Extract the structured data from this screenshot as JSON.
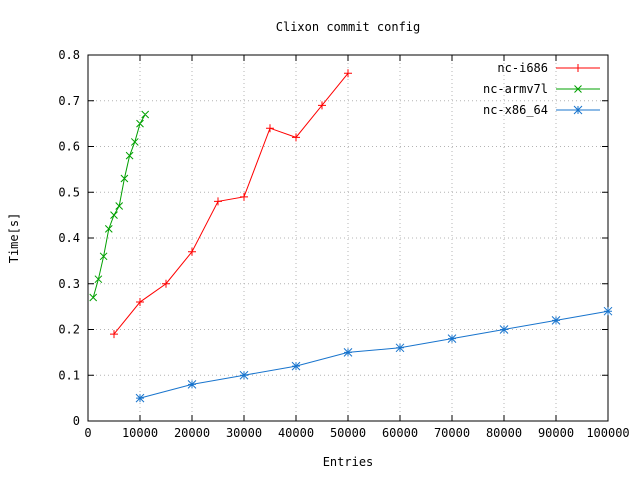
{
  "figure": {
    "background": "#ffffff",
    "border_color": "#000000",
    "grid_color": "#b4b4b4",
    "text_color": "#000000"
  },
  "chart_data": {
    "type": "line",
    "title": "Clixon commit config",
    "xlabel": "Entries",
    "ylabel": "Time[s]",
    "xlim": [
      0,
      100000
    ],
    "ylim": [
      0,
      0.8
    ],
    "xtick_step": 10000,
    "ytick_step": 0.1,
    "grid": true,
    "grid_style": "dotted",
    "legend_position": "top-right-inside",
    "series": [
      {
        "name": "nc-i686",
        "color": "#ff0000",
        "marker": "plus",
        "x": [
          5000,
          10000,
          15000,
          20000,
          25000,
          30000,
          35000,
          40000,
          45000,
          50000
        ],
        "y": [
          0.19,
          0.26,
          0.3,
          0.37,
          0.48,
          0.49,
          0.64,
          0.62,
          0.69,
          0.76
        ]
      },
      {
        "name": "nc-armv7l",
        "color": "#00a000",
        "marker": "cross",
        "x": [
          1000,
          2000,
          3000,
          4000,
          5000,
          6000,
          7000,
          8000,
          9000,
          10000,
          11000
        ],
        "y": [
          0.27,
          0.31,
          0.36,
          0.42,
          0.45,
          0.47,
          0.53,
          0.58,
          0.61,
          0.65,
          0.67
        ]
      },
      {
        "name": "nc-x86_64",
        "color": "#1874cd",
        "marker": "asterisk",
        "x": [
          10000,
          20000,
          30000,
          40000,
          50000,
          60000,
          70000,
          80000,
          90000,
          100000
        ],
        "y": [
          0.05,
          0.08,
          0.1,
          0.12,
          0.15,
          0.16,
          0.18,
          0.2,
          0.22,
          0.24
        ]
      }
    ]
  }
}
